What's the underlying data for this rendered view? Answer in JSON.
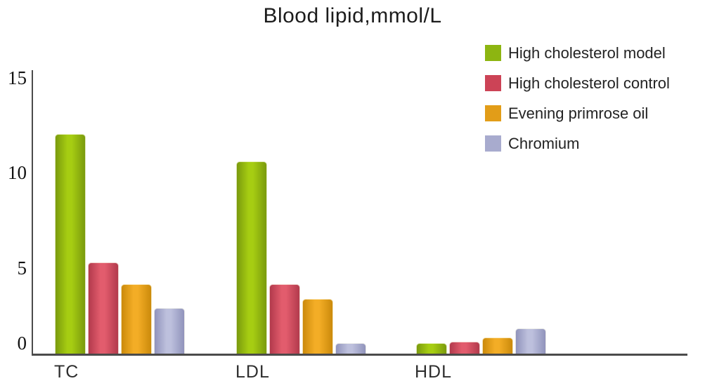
{
  "title": "Blood lipid,mmol/L",
  "chart_data": {
    "type": "bar",
    "title": "Blood lipid,mmol/L",
    "categories": [
      "TC",
      "LDL",
      "HDL"
    ],
    "series": [
      {
        "name": "High cholesterol model",
        "color": "#8db511",
        "values": [
          12,
          10.5,
          0.6
        ]
      },
      {
        "name": "High cholesterol control",
        "color": "#cc4356",
        "values": [
          5,
          3.8,
          0.7
        ]
      },
      {
        "name": "Evening primrose oil",
        "color": "#e29d18",
        "values": [
          3.8,
          3.0,
          0.9
        ]
      },
      {
        "name": "Chromium",
        "color": "#a8abce",
        "values": [
          2.5,
          0.6,
          1.4
        ]
      }
    ],
    "xlabel": "",
    "ylabel": "",
    "ylim": [
      0,
      15
    ],
    "yticks": [
      15,
      10,
      5,
      0
    ],
    "grid": false,
    "legend_position": "top-right",
    "axis_color": "#4b4b4b"
  }
}
